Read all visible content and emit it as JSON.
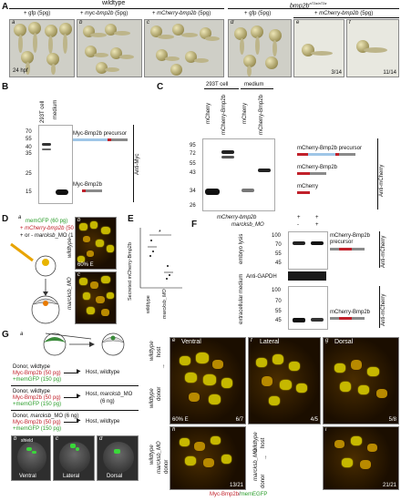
{
  "panelA": {
    "label": "A",
    "group_wildtype": "wildtype",
    "group_mutant": "bmp2b",
    "group_mutant_sup": "a72a/a72a",
    "cond_a": "+ gfp (5pg)",
    "cond_b_pre": "+ ",
    "cond_b_gene": "myc-bmp2b",
    "cond_b_post": " (5pg)",
    "cond_c_pre": "+ ",
    "cond_c_gene": "mCherry-bmp2b",
    "cond_c_post": " (5pg)",
    "cond_d": "+ gfp (5pg)",
    "cond_ef_pre": "+ ",
    "cond_ef_gene": "mCherry-bmp2b",
    "cond_ef_post": " (5pg)",
    "sub": [
      "a",
      "b",
      "c",
      "d",
      "e",
      "f"
    ],
    "stage": "24 hpf",
    "ratio_e": "3/14",
    "ratio_f": "11/14"
  },
  "panelB": {
    "label": "B",
    "lane1": "293T cell",
    "lane2": "medium",
    "markers": [
      "70",
      "55",
      "40",
      "35",
      "25",
      "15"
    ],
    "band1": "Myc-Bmp2b precursor",
    "band2": "Myc-Bmp2b",
    "antibody": "Anti-Myc"
  },
  "panelC": {
    "label": "C",
    "group1": "293T cell",
    "group2": "medium",
    "lanes": [
      "mCherry",
      "mCherry-Bmp2b",
      "mCherry",
      "mCherry-Bmp2b"
    ],
    "markers": [
      "95",
      "72",
      "55",
      "43",
      "34",
      "26"
    ],
    "band1": "mCherry-Bmp2b precursor",
    "band2": "mCherry-Bmp2b",
    "band3": "mCherry",
    "antibody": "Anti-mCherry"
  },
  "panelD": {
    "label": "D",
    "sub_a": "a",
    "sub_b": "b",
    "sub_c": "c",
    "inj1": "memGFP (60 pg)",
    "inj2_pre": "+ ",
    "inj2_gene": "mCherry-bmp2b",
    "inj2_post": " (50 pg)",
    "inj3_pre": "+ or - ",
    "inj3_gene": "marcksb",
    "inj3_post": "_MO (1 ng)",
    "row1": "wildtype",
    "row2": "marcksb_MO",
    "epiboly": "60% E"
  },
  "panelE": {
    "label": "E",
    "ylabel": "Secreted mCherry-Bmp2b",
    "star": "*",
    "x1": "wildtype",
    "x2": "marcksb_MO"
  },
  "panelF": {
    "label": "F",
    "row1_label": "mCherry-bmp2b",
    "row2_label": "marcksb_MO",
    "row1_vals": [
      "+",
      "+"
    ],
    "row2_vals": [
      "-",
      "+"
    ],
    "section1": "embryo lysis",
    "section2": "extracellular medium",
    "markers_top": [
      "100",
      "70",
      "55",
      "45"
    ],
    "markers_bottom": [
      "100",
      "70",
      "55",
      "45"
    ],
    "band_top": "mCherry-Bmp2b precursor",
    "gapdh": "Anti-GAPDH",
    "band_bottom": "mCherry-Bmp2b",
    "antibody": "Anti-mCherry"
  },
  "panelG": {
    "label": "G",
    "sub_a": "a",
    "donor1_l1": "Donor, wildtype",
    "donor1_l2": "Myc-Bmp2b (50 pg)",
    "donor1_l3": "+memGFP (150 pg)",
    "host1": "Host, wildtype",
    "donor2_l1": "Donor, wildtype",
    "donor2_l2": "Myc-Bmp2b (50 pg)",
    "donor2_l3": "+memGFP (150 pg)",
    "host2_pre": "Host, ",
    "host2_gene": "marcksb",
    "host2_post": "_MO",
    "host2_l2": "(6 ng)",
    "donor3_pre": "Donor, ",
    "donor3_gene": "marcksb",
    "donor3_post": "_MO (6 ng)",
    "donor3_l2": "Myc-Bmp2b (50 pg)",
    "donor3_l3": "+memGFP (150 pg)",
    "host3": "Host, wildtype",
    "sub_b": "b",
    "sub_c": "c",
    "sub_d": "d",
    "shield": "shield",
    "views": [
      "Ventral",
      "Lateral",
      "Dorsal"
    ],
    "sub_e": "e",
    "sub_f": "f",
    "sub_g": "g",
    "sub_h": "h",
    "sub_i": "i",
    "epiboly": "60% E",
    "ratio_e": "6/7",
    "ratio_f": "4/5",
    "ratio_g": "5/8",
    "ratio_h": "13/21",
    "ratio_i": "21/21",
    "side_row1_a": "wildtype",
    "side_row1_b": "host",
    "side_row1_c": "wildtype",
    "side_row1_d": "donor",
    "side_h_a": "wildtype",
    "side_h_b": "marcksb_MO",
    "side_h_c": "donor",
    "side_i_a": "marcksb_MO",
    "side_i_b": "wildtype",
    "side_i_c": "host",
    "side_i_d": "donor",
    "caption_red": "Myc-Bmp2b",
    "caption_sep": "/",
    "caption_green": "memEGFP"
  },
  "colors": {
    "red": "#c0202a",
    "green": "#2a9d2a",
    "lightblue": "#9fc6e7",
    "grey": "#8a8a8a"
  }
}
